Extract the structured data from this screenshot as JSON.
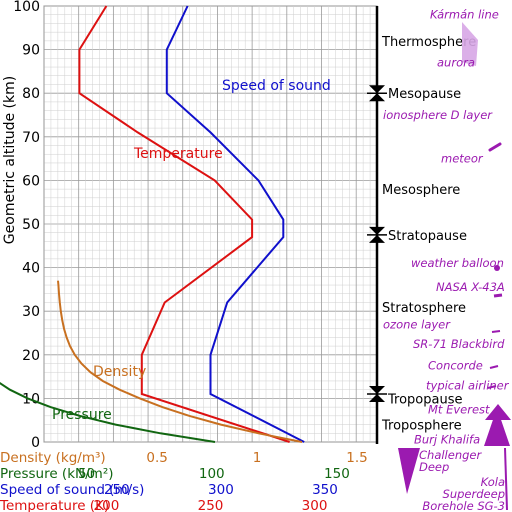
{
  "chart_data": {
    "type": "line",
    "ylabel": "Geometric altitude (km)",
    "ylim": [
      0,
      100
    ],
    "yticks": [
      0,
      10,
      20,
      30,
      40,
      50,
      60,
      70,
      80,
      90,
      100
    ],
    "grid": true,
    "series": [
      {
        "name": "Temperature",
        "color": "#dd1111",
        "unit_label": "Temperature (K)",
        "ticks": [
          200,
          250,
          300
        ],
        "range": [
          170,
          330
        ],
        "points": [
          [
            288,
            0
          ],
          [
            217,
            11
          ],
          [
            217,
            20
          ],
          [
            228,
            32
          ],
          [
            270,
            47
          ],
          [
            270,
            51
          ],
          [
            252,
            60
          ],
          [
            215,
            71
          ],
          [
            187,
            80
          ],
          [
            187,
            90
          ],
          [
            200,
            100
          ]
        ]
      },
      {
        "name": "Speed of sound",
        "color": "#1010cc",
        "unit_label": "Speed of sound (m/s)",
        "ticks": [
          250,
          300,
          350
        ],
        "range": [
          215,
          375
        ],
        "points": [
          [
            340,
            0
          ],
          [
            295,
            11
          ],
          [
            295,
            20
          ],
          [
            303,
            32
          ],
          [
            330,
            47
          ],
          [
            330,
            51
          ],
          [
            318,
            60
          ],
          [
            295,
            71
          ],
          [
            274,
            80
          ],
          [
            274,
            90
          ],
          [
            284,
            100
          ]
        ]
      },
      {
        "name": "Density",
        "color": "#c87020",
        "unit_label": "Density (kg/m³)",
        "ticks": [
          "0.5",
          "1",
          "1.5"
        ],
        "range": [
          -0.066,
          1.6
        ],
        "points": [
          [
            1.225,
            0
          ],
          [
            1.007,
            2
          ],
          [
            0.819,
            4
          ],
          [
            0.66,
            6
          ],
          [
            0.526,
            8
          ],
          [
            0.414,
            10
          ],
          [
            0.312,
            12
          ],
          [
            0.228,
            14
          ],
          [
            0.166,
            16
          ],
          [
            0.121,
            18
          ],
          [
            0.088,
            20
          ],
          [
            0.064,
            22
          ],
          [
            0.047,
            24
          ],
          [
            0.034,
            26
          ],
          [
            0.025,
            28
          ],
          [
            0.018,
            30
          ],
          [
            0.013,
            32
          ],
          [
            0.009,
            34
          ],
          [
            0.006,
            36
          ],
          [
            0.004,
            37
          ]
        ]
      },
      {
        "name": "Pressure",
        "color": "#116611",
        "unit_label": "Pressure (kN/m²)",
        "ticks": [
          50,
          100,
          150
        ],
        "range": [
          33,
          166
        ],
        "points": [
          [
            101.3,
            0
          ],
          [
            79.5,
            2
          ],
          [
            61.6,
            4
          ],
          [
            47.2,
            6
          ],
          [
            35.6,
            8
          ],
          [
            26.5,
            10
          ],
          [
            19.4,
            12
          ],
          [
            14.1,
            14
          ],
          [
            10.4,
            16
          ],
          [
            7.6,
            18
          ],
          [
            5.5,
            20
          ],
          [
            4.0,
            22
          ],
          [
            2.9,
            24
          ],
          [
            2.1,
            26
          ],
          [
            1.6,
            28
          ],
          [
            1.2,
            30
          ],
          [
            0.9,
            32
          ],
          [
            0.6,
            34
          ],
          [
            0.4,
            36
          ],
          [
            0.3,
            37
          ]
        ]
      }
    ],
    "layers": [
      {
        "name": "Thermosphere",
        "y": 92
      },
      {
        "name": "Mesopause",
        "y": 80
      },
      {
        "name": "Mesosphere",
        "y": 58
      },
      {
        "name": "Stratopause",
        "y": 47.5
      },
      {
        "name": "Stratosphere",
        "y": 31
      },
      {
        "name": "Tropopause",
        "y": 10
      },
      {
        "name": "Troposphere",
        "y": 4
      }
    ],
    "boundaries": [
      80,
      47.5,
      11
    ],
    "annotations": [
      {
        "name": "Kármán line",
        "y": 98
      },
      {
        "name": "aurora",
        "y": 87
      },
      {
        "name": "ionosphere D layer",
        "y": 75
      },
      {
        "name": "meteor",
        "y": 65
      },
      {
        "name": "weather balloon",
        "y": 41
      },
      {
        "name": "NASA X-43A",
        "y": 35.5
      },
      {
        "name": "ozone layer",
        "y": 27
      },
      {
        "name": "SR-71 Blackbird",
        "y": 22.5
      },
      {
        "name": "Concorde",
        "y": 17.5
      },
      {
        "name": "typical airliner",
        "y": 13
      },
      {
        "name": "Mt Everest",
        "y": 7.5
      },
      {
        "name": "Burj Khalifa",
        "y": 0.6
      },
      {
        "name": "Challenger Deep",
        "y": -4.5
      },
      {
        "name": "Kola Superdeep Borehole SG-3",
        "y": -10
      }
    ]
  }
}
